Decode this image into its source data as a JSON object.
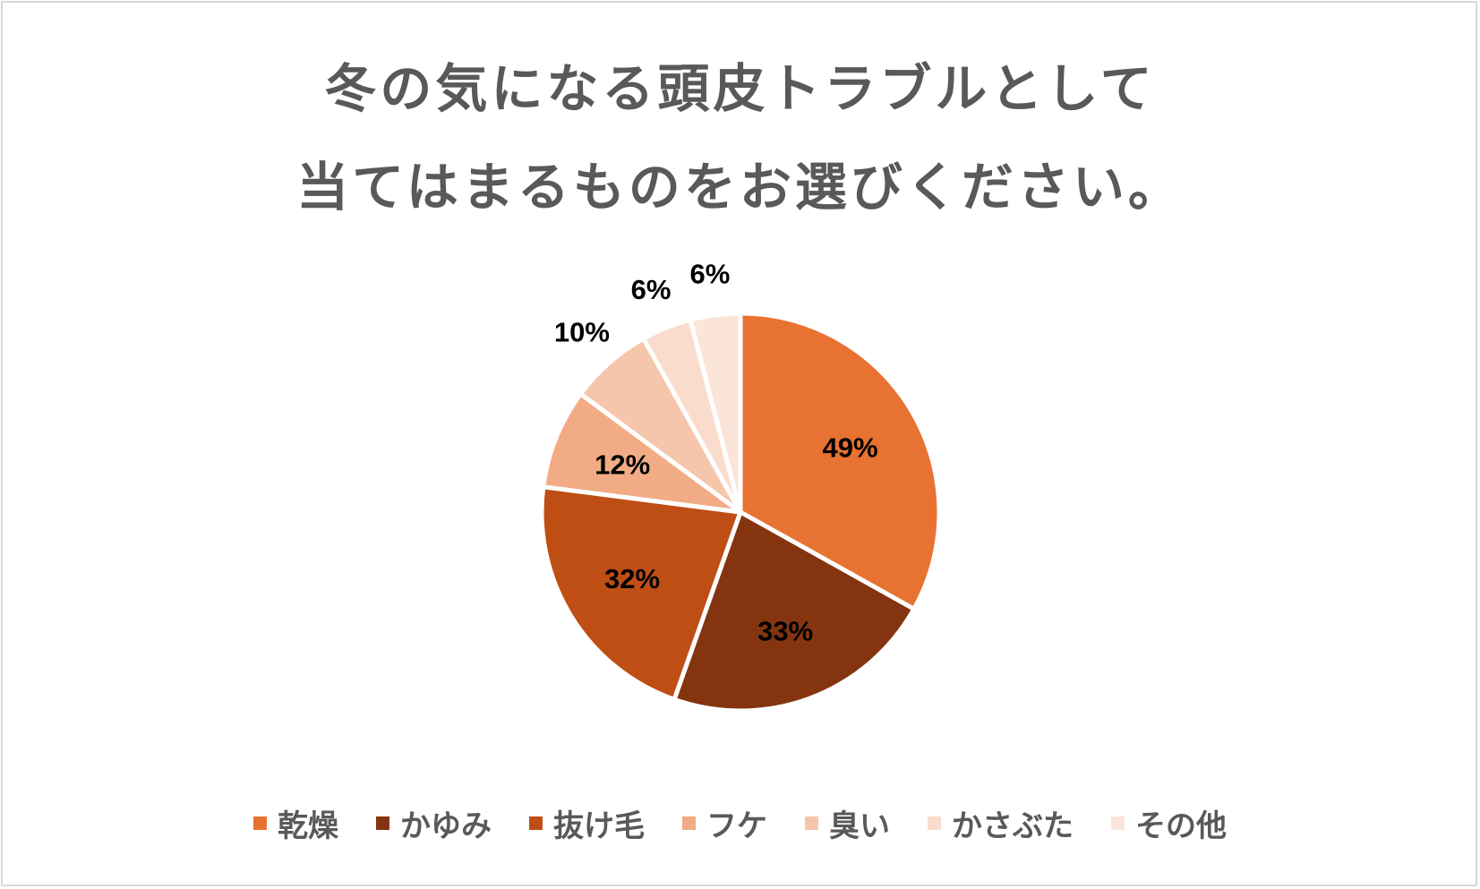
{
  "chart_data": {
    "type": "pie",
    "title_line1": "冬の気になる頭皮トラブルとして",
    "title_line2": "当てはまるものをお選びください。",
    "categories": [
      "乾燥",
      "かゆみ",
      "抜け毛",
      "フケ",
      "臭い",
      "かさぶた",
      "その他"
    ],
    "values": [
      49,
      33,
      32,
      12,
      10,
      6,
      6
    ],
    "labels": [
      "49%",
      "33%",
      "32%",
      "12%",
      "10%",
      "6%",
      "6%"
    ],
    "colors": [
      "#e87232",
      "#843510",
      "#bf4e14",
      "#f2ac85",
      "#f5c6ac",
      "#f9dccc",
      "#fbe4d8"
    ],
    "label_placement": [
      "inside",
      "inside",
      "inside",
      "inside",
      "outside",
      "outside",
      "outside"
    ],
    "legend_position": "bottom"
  }
}
